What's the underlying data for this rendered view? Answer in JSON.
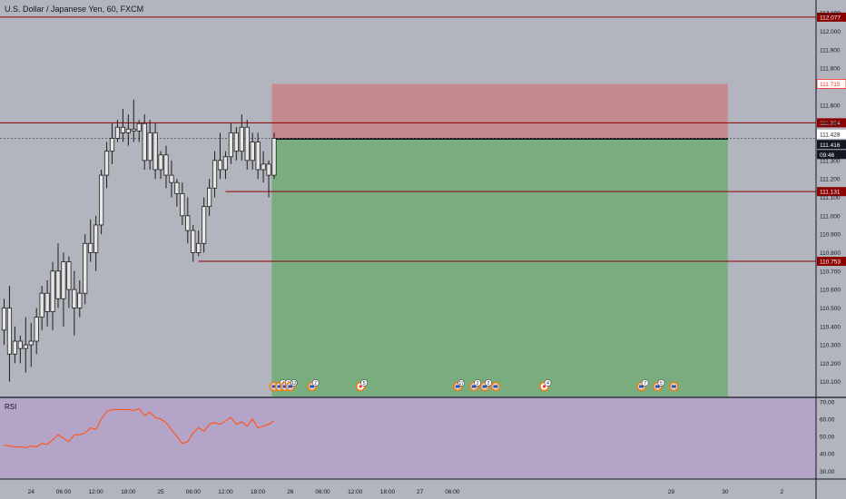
{
  "header": {
    "title": "U.S. Dollar / Japanese Yen, 60, FXCM"
  },
  "rsi": {
    "label": "RSI"
  },
  "colors": {
    "background": "#b2b5be",
    "candle": "#e6e6e6",
    "candle_outline": "#1e1e1e",
    "red_line": "#8b0000",
    "price_tag_red": "#ff2a2a",
    "stop_zone": "#c48a90",
    "target_zone": "#79ac7f",
    "rsi_pane": "#b3a4c8",
    "rsi_line": "#ff5722"
  },
  "chart_data": [
    {
      "type": "candlestick",
      "title": "U.S. Dollar / Japanese Yen, 60, FXCM",
      "ylim": [
        110.02,
        112.17
      ],
      "y_ticks": [
        "112.100",
        "112.000",
        "111.900",
        "111.800",
        "111.700",
        "111.600",
        "111.500",
        "111.400",
        "111.300",
        "111.200",
        "111.100",
        "111.000",
        "110.900",
        "110.800",
        "110.700",
        "110.600",
        "110.500",
        "110.400",
        "110.300",
        "110.200",
        "110.100"
      ],
      "x_ticks": [
        "24",
        "06:00",
        "12:00",
        "18:00",
        "25",
        "06:00",
        "12:00",
        "18:00",
        "26",
        "06:00",
        "12:00",
        "18:00",
        "27",
        "06:00",
        "29",
        "30",
        "2"
      ],
      "timeline": {
        "start": "2017-01-24 00:00",
        "step": "1h",
        "gap_before": "29"
      },
      "ohlc": [
        {
          "o": 110.38,
          "h": 110.55,
          "l": 110.3,
          "c": 110.5
        },
        {
          "o": 110.5,
          "h": 110.62,
          "l": 110.1,
          "c": 110.25
        },
        {
          "o": 110.25,
          "h": 110.4,
          "l": 110.2,
          "c": 110.32
        },
        {
          "o": 110.32,
          "h": 110.35,
          "l": 110.2,
          "c": 110.28
        },
        {
          "o": 110.28,
          "h": 110.45,
          "l": 110.15,
          "c": 110.3
        },
        {
          "o": 110.3,
          "h": 110.42,
          "l": 110.18,
          "c": 110.32
        },
        {
          "o": 110.32,
          "h": 110.5,
          "l": 110.25,
          "c": 110.45
        },
        {
          "o": 110.45,
          "h": 110.62,
          "l": 110.38,
          "c": 110.58
        },
        {
          "o": 110.58,
          "h": 110.65,
          "l": 110.4,
          "c": 110.48
        },
        {
          "o": 110.48,
          "h": 110.75,
          "l": 110.38,
          "c": 110.7
        },
        {
          "o": 110.7,
          "h": 110.85,
          "l": 110.5,
          "c": 110.55
        },
        {
          "o": 110.55,
          "h": 110.8,
          "l": 110.4,
          "c": 110.75
        },
        {
          "o": 110.75,
          "h": 110.78,
          "l": 110.5,
          "c": 110.6
        },
        {
          "o": 110.6,
          "h": 110.7,
          "l": 110.35,
          "c": 110.5
        },
        {
          "o": 110.5,
          "h": 110.65,
          "l": 110.45,
          "c": 110.58
        },
        {
          "o": 110.58,
          "h": 110.9,
          "l": 110.52,
          "c": 110.85
        },
        {
          "o": 110.85,
          "h": 110.98,
          "l": 110.75,
          "c": 110.8
        },
        {
          "o": 110.8,
          "h": 111.0,
          "l": 110.7,
          "c": 110.95
        },
        {
          "o": 110.95,
          "h": 111.25,
          "l": 110.9,
          "c": 111.22
        },
        {
          "o": 111.22,
          "h": 111.4,
          "l": 111.15,
          "c": 111.35
        },
        {
          "o": 111.35,
          "h": 111.5,
          "l": 111.28,
          "c": 111.42
        },
        {
          "o": 111.42,
          "h": 111.52,
          "l": 111.4,
          "c": 111.48
        },
        {
          "o": 111.48,
          "h": 111.58,
          "l": 111.4,
          "c": 111.45
        },
        {
          "o": 111.45,
          "h": 111.55,
          "l": 111.38,
          "c": 111.47
        },
        {
          "o": 111.47,
          "h": 111.63,
          "l": 111.4,
          "c": 111.46
        },
        {
          "o": 111.46,
          "h": 111.52,
          "l": 111.4,
          "c": 111.5
        },
        {
          "o": 111.5,
          "h": 111.55,
          "l": 111.25,
          "c": 111.3
        },
        {
          "o": 111.3,
          "h": 111.52,
          "l": 111.25,
          "c": 111.45
        },
        {
          "o": 111.45,
          "h": 111.5,
          "l": 111.2,
          "c": 111.25
        },
        {
          "o": 111.25,
          "h": 111.35,
          "l": 111.2,
          "c": 111.33
        },
        {
          "o": 111.33,
          "h": 111.38,
          "l": 111.15,
          "c": 111.22
        },
        {
          "o": 111.22,
          "h": 111.3,
          "l": 111.1,
          "c": 111.18
        },
        {
          "o": 111.18,
          "h": 111.2,
          "l": 111.05,
          "c": 111.12
        },
        {
          "o": 111.12,
          "h": 111.18,
          "l": 110.95,
          "c": 111.0
        },
        {
          "o": 111.0,
          "h": 111.1,
          "l": 110.85,
          "c": 110.92
        },
        {
          "o": 110.92,
          "h": 110.95,
          "l": 110.75,
          "c": 110.8
        },
        {
          "o": 110.8,
          "h": 110.92,
          "l": 110.78,
          "c": 110.85
        },
        {
          "o": 110.85,
          "h": 111.1,
          "l": 110.8,
          "c": 111.05
        },
        {
          "o": 111.05,
          "h": 111.2,
          "l": 111.0,
          "c": 111.15
        },
        {
          "o": 111.15,
          "h": 111.35,
          "l": 111.1,
          "c": 111.3
        },
        {
          "o": 111.3,
          "h": 111.45,
          "l": 111.2,
          "c": 111.25
        },
        {
          "o": 111.25,
          "h": 111.35,
          "l": 111.2,
          "c": 111.32
        },
        {
          "o": 111.32,
          "h": 111.5,
          "l": 111.28,
          "c": 111.45
        },
        {
          "o": 111.45,
          "h": 111.48,
          "l": 111.3,
          "c": 111.35
        },
        {
          "o": 111.35,
          "h": 111.55,
          "l": 111.3,
          "c": 111.48
        },
        {
          "o": 111.48,
          "h": 111.52,
          "l": 111.25,
          "c": 111.3
        },
        {
          "o": 111.3,
          "h": 111.45,
          "l": 111.25,
          "c": 111.4
        },
        {
          "o": 111.4,
          "h": 111.45,
          "l": 111.2,
          "c": 111.25
        },
        {
          "o": 111.25,
          "h": 111.35,
          "l": 111.18,
          "c": 111.28
        },
        {
          "o": 111.28,
          "h": 111.3,
          "l": 111.1,
          "c": 111.22
        },
        {
          "o": 111.22,
          "h": 111.45,
          "l": 111.2,
          "c": 111.42
        }
      ],
      "price_lines": [
        {
          "value": 112.077,
          "label": "112.077"
        },
        {
          "value": 111.504,
          "label": "111.504"
        },
        {
          "value": 111.131,
          "label": "111.131",
          "from_bar": 41
        },
        {
          "value": 110.753,
          "label": "110.753",
          "from_bar": 36
        }
      ],
      "price_tags": [
        {
          "value": 111.715,
          "label": "111.715",
          "style": "red-outline"
        },
        {
          "value": 111.428,
          "label": "111.428",
          "style": "white"
        },
        {
          "value": 111.416,
          "label": "111.416",
          "style": "black"
        },
        {
          "label": "09:46",
          "style": "black-countdown"
        }
      ],
      "current_price": 111.416,
      "position": {
        "entry": 111.416,
        "stop": 111.715,
        "target": 110.02,
        "from_bar": 50,
        "to_bar": 134
      },
      "events": [
        {
          "bar": 50,
          "kind": "usd",
          "count": ""
        },
        {
          "bar": 51,
          "kind": "usd",
          "count": "4"
        },
        {
          "bar": 52,
          "kind": "usd",
          "count": "3"
        },
        {
          "bar": 53,
          "kind": "usd",
          "count": "12"
        },
        {
          "bar": 57,
          "kind": "usd",
          "count": "2"
        },
        {
          "bar": 66,
          "kind": "jpy",
          "count": "5"
        },
        {
          "bar": 84,
          "kind": "usd",
          "count": "17"
        },
        {
          "bar": 87,
          "kind": "usd",
          "count": "2"
        },
        {
          "bar": 89,
          "kind": "usd",
          "count": "2"
        },
        {
          "bar": 91,
          "kind": "usd",
          "count": ""
        },
        {
          "bar": 100,
          "kind": "jpy",
          "count": "4"
        },
        {
          "bar": 118,
          "kind": "usd",
          "count": "7"
        },
        {
          "bar": 121,
          "kind": "usd",
          "count": "5"
        },
        {
          "bar": 124,
          "kind": "usd",
          "count": ""
        }
      ]
    },
    {
      "type": "line",
      "title": "RSI",
      "ylim": [
        26,
        72
      ],
      "y_ticks": [
        "70.00",
        "60.00",
        "50.00",
        "40.00",
        "30.00"
      ],
      "values": [
        45,
        44.5,
        44,
        44,
        43.5,
        44.5,
        44,
        46,
        45.5,
        48,
        51,
        49,
        47,
        51,
        51,
        52,
        55,
        54,
        60,
        64.5,
        65.5,
        65.5,
        65.5,
        65.5,
        65,
        66,
        62,
        64,
        61,
        60,
        58,
        54,
        50,
        46,
        47,
        52,
        55,
        53,
        57,
        58,
        57,
        59,
        61,
        57,
        58.5,
        56,
        60,
        55,
        56,
        57,
        59
      ]
    }
  ]
}
